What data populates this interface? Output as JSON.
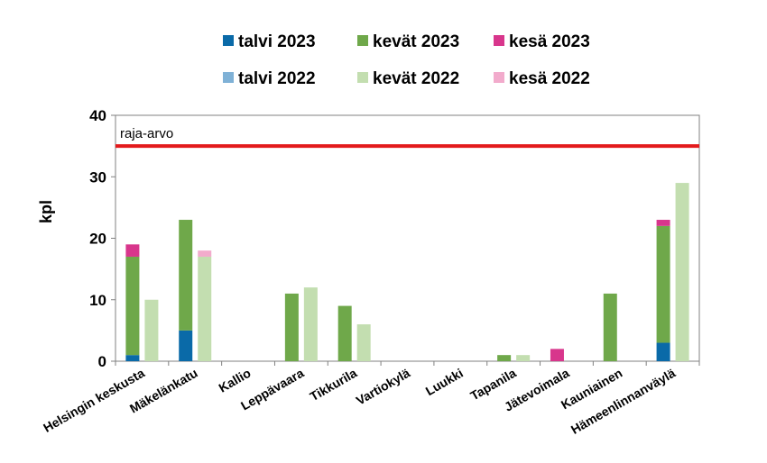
{
  "chart_data": {
    "type": "bar",
    "stacked": true,
    "ylabel": "kpl",
    "ylim": [
      0,
      40
    ],
    "yticks": [
      0,
      10,
      20,
      30,
      40
    ],
    "grid": false,
    "legend_position": "top",
    "categories": [
      "Helsingin keskusta",
      "Mäkelänkatu",
      "Kallio",
      "Leppävaara",
      "Tikkurila",
      "Vartiokylä",
      "Luukki",
      "Tapanila",
      "Jätevoimala",
      "Kauniainen",
      "Hämeenlinnanväylä"
    ],
    "groups": [
      {
        "year": "2023",
        "series": [
          {
            "name": "talvi 2023",
            "color": "#0a6aa8",
            "values": [
              1,
              5,
              0,
              0,
              0,
              0,
              0,
              0,
              0,
              0,
              3
            ]
          },
          {
            "name": "kevät 2023",
            "color": "#6fa84a",
            "values": [
              16,
              18,
              0,
              11,
              9,
              0,
              0,
              1,
              0,
              11,
              19
            ]
          },
          {
            "name": "kesä 2023",
            "color": "#d8368c",
            "values": [
              2,
              0,
              0,
              0,
              0,
              0,
              0,
              0,
              2,
              0,
              1
            ]
          }
        ]
      },
      {
        "year": "2022",
        "series": [
          {
            "name": "talvi 2022",
            "color": "#7fb1d6",
            "values": [
              0,
              0,
              0,
              0,
              0,
              0,
              0,
              0,
              0,
              0,
              0
            ]
          },
          {
            "name": "kevät 2022",
            "color": "#c3deb0",
            "values": [
              10,
              17,
              0,
              12,
              6,
              0,
              0,
              1,
              0,
              0,
              29
            ]
          },
          {
            "name": "kesä 2022",
            "color": "#f2abcc",
            "values": [
              0,
              1,
              0,
              0,
              0,
              0,
              0,
              0,
              0,
              0,
              0
            ]
          }
        ]
      }
    ],
    "reference_line": {
      "label": "raja-arvo",
      "value": 35,
      "color": "#e31a1c"
    }
  }
}
